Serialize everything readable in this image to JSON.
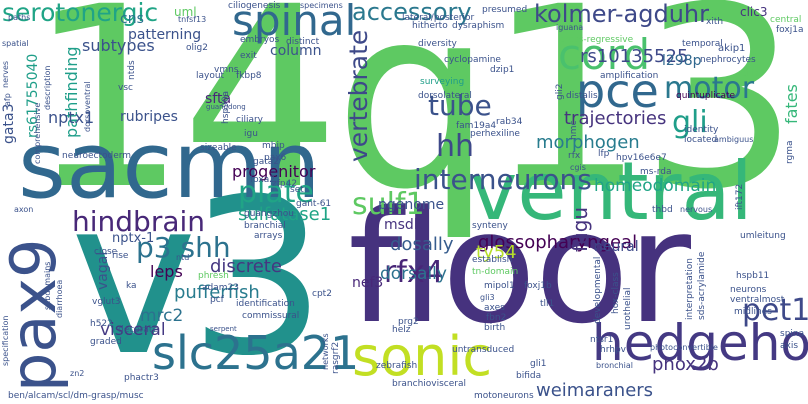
{
  "words": {
    "w14q13_3": "14q13.3",
    "floor": "floor",
    "v3": "v3",
    "sacmn": "sacmn",
    "ventral": "ventral",
    "pax9": "pax9",
    "hedgehog": "hedgehog",
    "sonic": "sonic",
    "slc25a21": "slc25a21",
    "spinal": "spinal",
    "pce": "pce",
    "cord": "cord",
    "serotonergic": "serotonergic",
    "accessory": "accessory",
    "kolmer_agduhr": "kolmer-agduhr",
    "interneurons": "interneurons",
    "tube": "tube",
    "motor": "motor",
    "gli": "gli",
    "hindbrain": "hindbrain",
    "plate": "plate",
    "sulf1": "sulf1",
    "rfx4": "rfx4",
    "p3_shh": "p3 shh",
    "hh": "hh",
    "vertebrate": "vertebrate",
    "rs10135525": "rs10135525",
    "l298p": "l298p",
    "morphogen": "morphogen",
    "trajectories": "trajectories",
    "pet1": "pet1",
    "phox2b": "phox2b",
    "weimaraners": "weimaraners",
    "glossopharyngeal": "glossopharyngeal",
    "dosally": "dosally",
    "dorsally": "dorsally",
    "ty54": "ty54",
    "sulfatase1": "sulfatase1",
    "progenitor": "progenitor",
    "homeodomain": "homeodomain",
    "pgenome": "pgenome",
    "msdk": "msdk",
    "discrete": "discrete",
    "leps": "leps",
    "nptx_1": "nptx-1",
    "pufferfish": "pufferfish",
    "mrc2": "mrc2",
    "visceral": "visceral",
    "neural": "neural",
    "nef3": "nef3",
    "fugu": "fugu",
    "subtypes": "subtypes",
    "patterning": "patterning",
    "cns": "cns",
    "uml": "uml",
    "column": "column",
    "sfta": "sfta",
    "rs61755040": "rs61755040",
    "gata3": "gata3",
    "pathfinding": "pathfinding",
    "rubripes": "rubripes",
    "nptx1": "nptx1",
    "vagal": "vagal",
    "fates": "fates",
    "clic3": "clic3",
    "presumed": "presumed",
    "iguana": "iguana",
    "cyclopamine": "cyclopamine",
    "dzip1": "dzip1",
    "surveying": "surveying",
    "diversity": "diversity",
    "dorsolateral": "dorsolateral",
    "perhexiline": "perhexiline",
    "rab34": "rab34",
    "fam19a4": "fam19a4",
    "amplification": "amplification",
    "nephrocytes": "nephrocytes",
    "akip1": "akip1",
    "quintuplicate": "quintuplicate",
    "identity": "identity",
    "located": "located",
    "cilia": "cilia",
    "temporal": "temporal",
    "cross_regressive": "cross-regressive",
    "ciliogenesis": "ciliogenesis",
    "specimens": "specimens",
    "tnfsf13": "tnfsf13",
    "embryos": "embryos",
    "olig2": "olig2",
    "exit": "exit",
    "layout": "layout",
    "vmns": "vmns",
    "vsc": "vsc",
    "ntds": "ntds",
    "fkbp8": "fkbp8",
    "hsp90a": "hsp90a",
    "ciliary": "ciliary",
    "igu": "igu",
    "mbip": "mbip",
    "pax6": "pax6",
    "gata2": "gata2",
    "zfp42": "zfp42",
    "foxa2": "foxa2",
    "set": "set",
    "gant_61": "gant-61",
    "guangzhou": "guangzhou",
    "branchial": "branchial",
    "arrays": "arrays",
    "sizeable": "sizeable",
    "synteny": "synteny",
    "establish": "establish",
    "tn_domain": "tn-domain",
    "mipol1": "mipol1",
    "foxj1b": "foxj1b",
    "gli3": "gli3",
    "axes": "axes",
    "fbn2": "fbn2",
    "birth": "birth",
    "tll1": "tll1",
    "developmental": "developmental",
    "hox_class": "hox-class",
    "urothelial": "urothelial",
    "ntsr1": "ntsr1",
    "hrhpv": "hrhpv",
    "photoconvertible": "photoconvertible",
    "interpretation": "interpretation",
    "sds_acrylamide": "sds-acrylamide",
    "neurons": "neurons",
    "ventralmost": "ventralmost",
    "midlines": "midlines",
    "hspb11": "hspb11",
    "umleitung": "umleitung",
    "ift172": "ift172",
    "thbd": "thbd",
    "nervous": "nervous",
    "ms_rda": "ms-rda",
    "hpv16e6e7": "hpv16e6e7",
    "lfp": "lfp",
    "rfx": "rfx",
    "cgis": "cgis",
    "hmc": "hmc",
    "gli2": "gli2",
    "distalis": "distalis",
    "rgma": "rgma",
    "ambiguus": "ambiguus",
    "xith": "xith",
    "central": "central",
    "foxj1a": "foxj1a",
    "lateral_posterior": "lateral/posterior",
    "hitherto": "hitherto",
    "dysraphism": "dysraphism",
    "distinct": "distinct",
    "paths": "paths",
    "spatial": "spatial",
    "nerves": "nerves",
    "afp": "afp",
    "description": "description",
    "comprehensive": "comprehensive",
    "dorsoventral": "dorsoventral",
    "neuroectoderm": "neuroectoderm",
    "guangdong": "guangdong",
    "axon": "axon",
    "ntd": "ntd",
    "close": "close",
    "rise": "rise",
    "ka": "ka",
    "vglut3": "vglut3",
    "h522": "h522",
    "subdomains": "subdomains",
    "diarrhoea": "diarrhoea",
    "graded": "graded",
    "decorate": "decorate",
    "specification": "specification",
    "phactr3": "phactr3",
    "zn2": "zn2",
    "phresh": "phresh",
    "adam23": "adam23",
    "pcf": "pcf",
    "identification": "identification",
    "commissural": "commissural",
    "serpent": "serpent",
    "cpt2": "cpt2",
    "prg2": "prg2",
    "helz": "helz",
    "networks": "networks",
    "rasgrf2": "rasgrf2",
    "zebrafish": "zebrafish",
    "untransduced": "untransduced",
    "gli1": "gli1",
    "bifida": "bifida",
    "branchiovisceral": "branchiovisceral",
    "motoneurons": "motoneurons",
    "bronchial": "bronchial",
    "axis": "axis",
    "spina": "spina",
    "footer_path": "ben/alcam/scl/dm-grasp/musc"
  },
  "colors": {
    "dark_purple": "#440154",
    "indigo": "#46327e",
    "blue": "#365c8d",
    "teal": "#277f8e",
    "green_teal": "#1fa187",
    "green": "#4ac16d",
    "light_green": "#a0da39",
    "yellow": "#fde725"
  }
}
